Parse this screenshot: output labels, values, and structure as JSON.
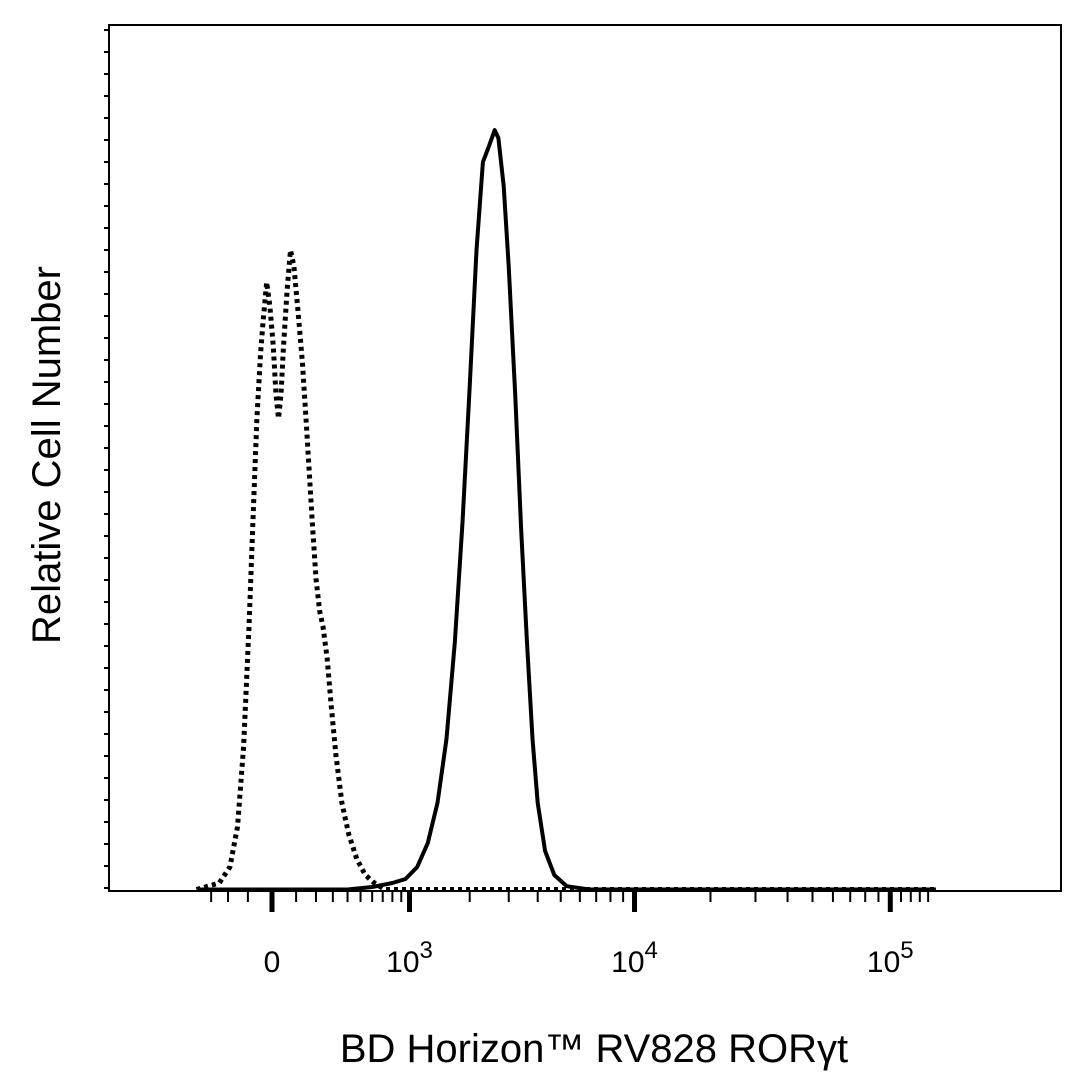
{
  "chart_data": {
    "type": "line",
    "title": "",
    "xlabel": "BD Horizon™ RV828 RORγt",
    "ylabel": "Relative Cell Number",
    "x_scale": "biexponential",
    "x_tick_labels": [
      {
        "base": "0",
        "exp": ""
      },
      {
        "base": "10",
        "exp": "3"
      },
      {
        "base": "10",
        "exp": "4"
      },
      {
        "base": "10",
        "exp": "5"
      }
    ],
    "y_tick_labels": [],
    "grid": false,
    "legend": "none",
    "y_max": 100,
    "series": [
      {
        "style": "dotted",
        "color": "#000000",
        "points": [
          [
            -400,
            0
          ],
          [
            -250,
            1
          ],
          [
            -190,
            3
          ],
          [
            -150,
            8
          ],
          [
            -120,
            18
          ],
          [
            -95,
            33
          ],
          [
            -75,
            48
          ],
          [
            -60,
            59
          ],
          [
            -45,
            67
          ],
          [
            -35,
            71
          ],
          [
            -20,
            76
          ],
          [
            -8,
            73
          ],
          [
            5,
            68
          ],
          [
            15,
            62
          ],
          [
            25,
            59
          ],
          [
            35,
            62
          ],
          [
            45,
            68
          ],
          [
            60,
            75
          ],
          [
            75,
            80
          ],
          [
            90,
            78
          ],
          [
            110,
            72
          ],
          [
            130,
            66
          ],
          [
            150,
            58
          ],
          [
            165,
            52
          ],
          [
            180,
            46
          ],
          [
            200,
            39
          ],
          [
            220,
            35
          ],
          [
            240,
            33
          ],
          [
            265,
            29
          ],
          [
            290,
            23
          ],
          [
            320,
            17
          ],
          [
            360,
            11
          ],
          [
            410,
            7
          ],
          [
            470,
            4
          ],
          [
            540,
            2
          ],
          [
            620,
            1
          ],
          [
            720,
            0
          ],
          [
            900,
            0
          ],
          [
            3000,
            0
          ],
          [
            10000,
            0
          ],
          [
            150000,
            0
          ]
        ]
      },
      {
        "style": "solid",
        "color": "#000000",
        "points": [
          [
            -400,
            0
          ],
          [
            400,
            0
          ],
          [
            600,
            0.5
          ],
          [
            800,
            1
          ],
          [
            950,
            1.5
          ],
          [
            1100,
            3
          ],
          [
            1250,
            6
          ],
          [
            1400,
            11
          ],
          [
            1550,
            19
          ],
          [
            1700,
            31
          ],
          [
            1850,
            46
          ],
          [
            2000,
            63
          ],
          [
            2150,
            80
          ],
          [
            2300,
            91
          ],
          [
            2450,
            93
          ],
          [
            2600,
            95
          ],
          [
            2700,
            94
          ],
          [
            2850,
            88
          ],
          [
            3000,
            78
          ],
          [
            3200,
            62
          ],
          [
            3400,
            45
          ],
          [
            3600,
            31
          ],
          [
            3800,
            19
          ],
          [
            4000,
            11
          ],
          [
            4300,
            5
          ],
          [
            4700,
            2
          ],
          [
            5300,
            0.6
          ],
          [
            6500,
            0.2
          ],
          [
            8500,
            0
          ],
          [
            150000,
            0
          ]
        ]
      }
    ]
  }
}
